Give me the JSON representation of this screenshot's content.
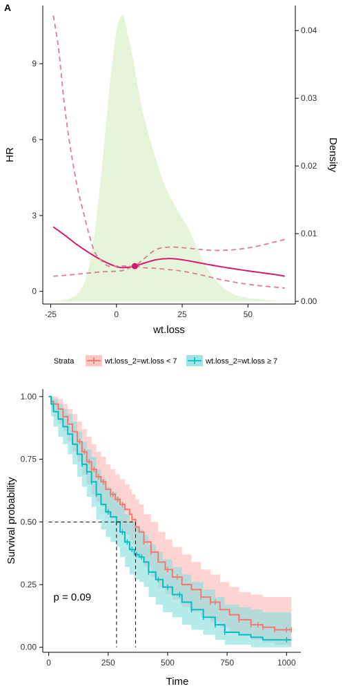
{
  "panel_label": "A",
  "chart_data": [
    {
      "type": "line",
      "xlabel": "wt.loss",
      "ylabel": "HR",
      "y2label": "Density",
      "xlim": [
        -28,
        68
      ],
      "ylim": [
        -0.5,
        11.3
      ],
      "y2lim": [
        -0.0004,
        0.0437
      ],
      "xticks": [
        -25,
        0,
        25,
        50
      ],
      "yticks": [
        0,
        3,
        6,
        9
      ],
      "y2ticks": [
        0.0,
        0.01,
        0.02,
        0.03,
        0.04
      ],
      "y2tick_labels": [
        "0.00",
        "0.01",
        "0.02",
        "0.03",
        "0.04"
      ],
      "reference_point": {
        "x": 7,
        "y": 1.0
      },
      "colors": {
        "hr": "#d6186e",
        "ci": "#e07a95",
        "density": "#e6f5d9"
      },
      "density": {
        "x": [
          -26,
          -20,
          -15,
          -12,
          -10,
          -8,
          -6,
          -4,
          -2,
          0,
          1,
          2,
          3,
          4,
          6,
          8,
          10,
          12,
          15,
          18,
          21,
          24,
          27,
          30,
          33,
          36,
          40,
          45,
          50,
          55,
          60,
          63
        ],
        "y": [
          0.0,
          0.0002,
          0.001,
          0.003,
          0.006,
          0.011,
          0.018,
          0.026,
          0.034,
          0.04,
          0.0415,
          0.0422,
          0.0418,
          0.04,
          0.0365,
          0.032,
          0.028,
          0.025,
          0.021,
          0.0175,
          0.015,
          0.013,
          0.011,
          0.0085,
          0.006,
          0.004,
          0.0022,
          0.001,
          0.0005,
          0.0003,
          0.0001,
          0.0
        ]
      },
      "series": [
        {
          "role": "hr",
          "x": [
            -24,
            -20,
            -15,
            -10,
            -5,
            0,
            3,
            7,
            10,
            15,
            20,
            25,
            30,
            35,
            40,
            45,
            50,
            55,
            60,
            64
          ],
          "y": [
            2.55,
            2.25,
            1.85,
            1.5,
            1.2,
            0.98,
            0.94,
            1.0,
            1.1,
            1.25,
            1.3,
            1.25,
            1.16,
            1.06,
            0.97,
            0.89,
            0.81,
            0.74,
            0.67,
            0.6
          ]
        },
        {
          "role": "ci_upper",
          "x": [
            -24,
            -22,
            -20,
            -18,
            -15,
            -12,
            -10,
            -8,
            -5,
            -3,
            0,
            3,
            5,
            7,
            10,
            15,
            20,
            25,
            30,
            35,
            40,
            45,
            50,
            55,
            60,
            64
          ],
          "y": [
            10.9,
            9.6,
            7.6,
            6.0,
            4.2,
            2.9,
            2.1,
            1.5,
            1.15,
            1.0,
            1.0,
            1.0,
            1.0,
            1.0,
            1.25,
            1.65,
            1.75,
            1.73,
            1.68,
            1.63,
            1.62,
            1.65,
            1.72,
            1.82,
            1.95,
            2.05
          ]
        },
        {
          "role": "ci_lower",
          "x": [
            -24,
            -20,
            -15,
            -10,
            -5,
            0,
            3,
            7,
            10,
            15,
            20,
            25,
            30,
            35,
            40,
            45,
            50,
            55,
            60,
            64
          ],
          "y": [
            0.6,
            0.63,
            0.68,
            0.73,
            0.78,
            0.8,
            0.84,
            1.0,
            0.94,
            0.91,
            0.86,
            0.8,
            0.7,
            0.58,
            0.46,
            0.36,
            0.28,
            0.22,
            0.17,
            0.13
          ]
        }
      ]
    },
    {
      "type": "line",
      "title": "",
      "xlabel": "Time",
      "ylabel": "Survival probability",
      "xlim": [
        -25,
        1060
      ],
      "ylim": [
        -0.02,
        1.03
      ],
      "xticks": [
        0,
        250,
        500,
        750,
        1000
      ],
      "yticks": [
        0.0,
        0.25,
        0.5,
        0.75,
        1.0
      ],
      "ytick_labels": [
        "0.00",
        "0.25",
        "0.50",
        "0.75",
        "1.00"
      ],
      "legend": {
        "title": "Strata",
        "placement": "top",
        "entries": [
          "wt.loss_2=wt.loss < 7",
          "wt.loss_2=wt.loss ≥ 7"
        ]
      },
      "annotation": "p = 0.09",
      "median_line": {
        "y": 0.5,
        "x": [
          285,
          365
        ]
      },
      "series": [
        {
          "name": "wt.loss_2=wt.loss < 7",
          "color": "#f8766d",
          "band_color": "#fbb8b2",
          "x": [
            0,
            10,
            20,
            40,
            60,
            80,
            100,
            120,
            140,
            160,
            180,
            200,
            220,
            240,
            260,
            280,
            300,
            320,
            340,
            350,
            365,
            380,
            400,
            430,
            460,
            490,
            520,
            560,
            600,
            640,
            680,
            720,
            760,
            800,
            850,
            900,
            950,
            1000,
            1020
          ],
          "y": [
            1.0,
            0.98,
            0.97,
            0.95,
            0.92,
            0.89,
            0.86,
            0.82,
            0.78,
            0.74,
            0.71,
            0.68,
            0.66,
            0.63,
            0.61,
            0.59,
            0.57,
            0.55,
            0.53,
            0.51,
            0.48,
            0.46,
            0.42,
            0.38,
            0.34,
            0.31,
            0.28,
            0.25,
            0.23,
            0.2,
            0.18,
            0.15,
            0.13,
            0.11,
            0.09,
            0.08,
            0.07,
            0.07,
            0.07
          ],
          "upper": [
            1.0,
            1.0,
            1.0,
            0.99,
            0.97,
            0.95,
            0.93,
            0.9,
            0.87,
            0.84,
            0.81,
            0.78,
            0.76,
            0.73,
            0.71,
            0.69,
            0.67,
            0.65,
            0.63,
            0.61,
            0.59,
            0.57,
            0.53,
            0.5,
            0.46,
            0.43,
            0.4,
            0.37,
            0.34,
            0.31,
            0.29,
            0.26,
            0.24,
            0.22,
            0.21,
            0.2,
            0.2,
            0.2,
            0.2
          ],
          "lower": [
            1.0,
            0.94,
            0.92,
            0.89,
            0.86,
            0.82,
            0.78,
            0.74,
            0.69,
            0.65,
            0.61,
            0.58,
            0.56,
            0.53,
            0.51,
            0.49,
            0.47,
            0.45,
            0.43,
            0.41,
            0.38,
            0.36,
            0.32,
            0.28,
            0.24,
            0.21,
            0.19,
            0.16,
            0.14,
            0.12,
            0.1,
            0.08,
            0.06,
            0.05,
            0.03,
            0.02,
            0.01,
            0.01,
            0.01
          ]
        },
        {
          "name": "wt.loss_2=wt.loss ≥ 7",
          "color": "#00bfc4",
          "band_color": "#86dde0",
          "x": [
            0,
            10,
            20,
            40,
            60,
            80,
            100,
            120,
            140,
            160,
            180,
            200,
            220,
            240,
            260,
            285,
            300,
            320,
            340,
            360,
            380,
            400,
            420,
            450,
            480,
            520,
            560,
            600,
            650,
            700,
            740,
            800,
            850,
            900,
            950,
            1000,
            1020
          ],
          "y": [
            1.0,
            0.97,
            0.94,
            0.91,
            0.88,
            0.85,
            0.81,
            0.77,
            0.73,
            0.7,
            0.66,
            0.61,
            0.57,
            0.54,
            0.52,
            0.5,
            0.46,
            0.42,
            0.39,
            0.37,
            0.36,
            0.34,
            0.3,
            0.27,
            0.24,
            0.21,
            0.18,
            0.15,
            0.12,
            0.09,
            0.06,
            0.05,
            0.04,
            0.03,
            0.03,
            0.03,
            0.03
          ],
          "upper": [
            1.0,
            1.0,
            0.99,
            0.97,
            0.95,
            0.93,
            0.9,
            0.86,
            0.82,
            0.79,
            0.76,
            0.71,
            0.67,
            0.64,
            0.62,
            0.6,
            0.57,
            0.53,
            0.5,
            0.48,
            0.47,
            0.45,
            0.41,
            0.38,
            0.35,
            0.32,
            0.29,
            0.26,
            0.23,
            0.2,
            0.17,
            0.16,
            0.15,
            0.14,
            0.14,
            0.14,
            0.14
          ],
          "lower": [
            1.0,
            0.92,
            0.88,
            0.84,
            0.81,
            0.77,
            0.73,
            0.68,
            0.64,
            0.6,
            0.56,
            0.51,
            0.47,
            0.44,
            0.42,
            0.4,
            0.36,
            0.32,
            0.29,
            0.27,
            0.26,
            0.24,
            0.2,
            0.17,
            0.14,
            0.12,
            0.09,
            0.07,
            0.05,
            0.03,
            0.01,
            0.01,
            0.0,
            0.0,
            0.0,
            0.0,
            0.0
          ]
        }
      ],
      "censor_marks": [
        {
          "series": 0,
          "x": [
            60,
            130,
            150,
            170,
            180,
            190,
            210,
            230,
            260,
            270,
            290,
            310,
            350,
            400,
            430,
            500,
            540,
            640,
            680,
            700,
            800,
            850,
            880,
            900,
            950,
            1000,
            1020
          ]
        },
        {
          "series": 1,
          "x": [
            140,
            160,
            180,
            200,
            250,
            310,
            330,
            350,
            370,
            390,
            420,
            460,
            500,
            550,
            600,
            650,
            700,
            740,
            1000
          ]
        }
      ]
    }
  ]
}
